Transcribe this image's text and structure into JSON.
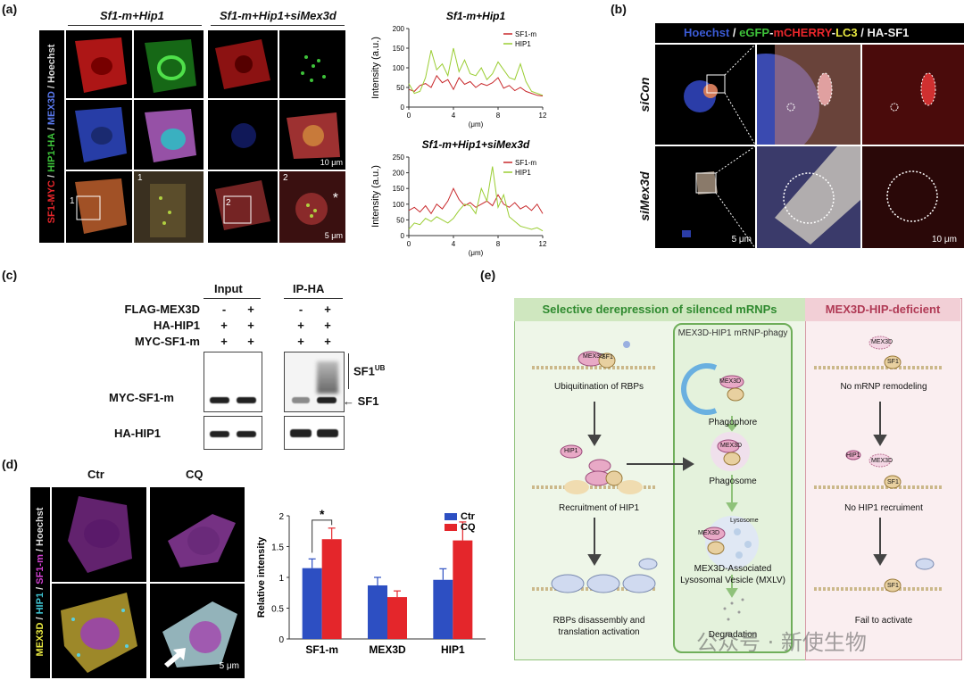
{
  "panel_a": {
    "label": "(a)",
    "cond1": "Sf1-m+Hip1",
    "cond2": "Sf1-m+Hip1+siMex3d",
    "side_label": {
      "sf1": "SF1-MYC",
      "sep1": " / ",
      "hip": "HIP1-HA",
      "sep2": " / ",
      "mex": "MEX3D",
      "sep3": " / ",
      "hoe": "Hoechst"
    },
    "scale1": "10 μm",
    "scale2": "5 μm",
    "inset1": "1",
    "inset2": "2",
    "inset1b": "1",
    "inset2b": "2",
    "star": "*",
    "colors": {
      "sf1": "#e8262b",
      "hip": "#3ec23a",
      "mex": "#3b5bd6",
      "hoe": "#dddddd"
    }
  },
  "chart_data": [
    {
      "type": "line",
      "title": "Sf1-m+Hip1",
      "xlabel": "(μm)",
      "ylabel": "Intensity (a.u.)",
      "xlim": [
        0,
        12
      ],
      "ylim": [
        0,
        200
      ],
      "xticks": [
        0,
        4,
        8,
        12
      ],
      "yticks": [
        0,
        50,
        100,
        150,
        200
      ],
      "series": [
        {
          "name": "SF1-m",
          "color": "#c8282b",
          "x": [
            0,
            0.5,
            1,
            1.5,
            2,
            2.5,
            3,
            3.5,
            4,
            4.5,
            5,
            5.5,
            6,
            6.5,
            7,
            7.5,
            8,
            8.5,
            9,
            9.5,
            10,
            10.5,
            11,
            11.5,
            12
          ],
          "y": [
            45,
            40,
            55,
            60,
            50,
            80,
            62,
            70,
            45,
            75,
            58,
            65,
            50,
            60,
            55,
            62,
            75,
            48,
            55,
            42,
            50,
            40,
            35,
            30,
            28
          ]
        },
        {
          "name": "HIP1",
          "color": "#9acd32",
          "x": [
            0,
            0.5,
            1,
            1.5,
            2,
            2.5,
            3,
            3.5,
            4,
            4.5,
            5,
            5.5,
            6,
            6.5,
            7,
            7.5,
            8,
            8.5,
            9,
            9.5,
            10,
            10.5,
            11,
            11.5,
            12
          ],
          "y": [
            60,
            35,
            40,
            75,
            145,
            95,
            110,
            80,
            150,
            90,
            120,
            85,
            80,
            100,
            70,
            85,
            115,
            95,
            75,
            70,
            110,
            65,
            40,
            35,
            30
          ]
        }
      ]
    },
    {
      "type": "line",
      "title": "Sf1-m+Hip1+siMex3d",
      "xlabel": "(μm)",
      "ylabel": "Intensity (a.u.)",
      "xlim": [
        0,
        12
      ],
      "ylim": [
        0,
        250
      ],
      "xticks": [
        0,
        4,
        8,
        12
      ],
      "yticks": [
        0,
        50,
        100,
        150,
        200,
        250
      ],
      "series": [
        {
          "name": "SF1-m",
          "color": "#c8282b",
          "x": [
            0,
            0.5,
            1,
            1.5,
            2,
            2.5,
            3,
            3.5,
            4,
            4.5,
            5,
            5.5,
            6,
            6.5,
            7,
            7.5,
            8,
            8.5,
            9,
            9.5,
            10,
            10.5,
            11,
            11.5,
            12
          ],
          "y": [
            80,
            90,
            75,
            95,
            70,
            100,
            85,
            110,
            150,
            115,
            95,
            105,
            90,
            100,
            110,
            95,
            130,
            100,
            90,
            105,
            85,
            95,
            80,
            100,
            70
          ]
        },
        {
          "name": "HIP1",
          "color": "#9acd32",
          "x": [
            0,
            0.5,
            1,
            1.5,
            2,
            2.5,
            3,
            3.5,
            4,
            4.5,
            5,
            5.5,
            6,
            6.5,
            7,
            7.5,
            8,
            8.5,
            9,
            9.5,
            10,
            10.5,
            11,
            11.5,
            12
          ],
          "y": [
            20,
            40,
            35,
            55,
            45,
            60,
            50,
            40,
            55,
            80,
            100,
            95,
            70,
            150,
            110,
            220,
            90,
            130,
            60,
            45,
            30,
            25,
            20,
            25,
            15
          ]
        }
      ]
    },
    {
      "type": "bar",
      "categories": [
        "SF1-m",
        "MEX3D",
        "HIP1"
      ],
      "ylabel": "Relative intensity",
      "ylim": [
        0,
        2
      ],
      "yticks": [
        0,
        0.5,
        1,
        1.5,
        2
      ],
      "legend": "top-right",
      "significance": "*",
      "series": [
        {
          "name": "Ctr",
          "color": "#2d4fc2",
          "values": [
            1.15,
            0.87,
            0.96
          ],
          "errors": [
            0.15,
            0.13,
            0.18
          ]
        },
        {
          "name": "CQ",
          "color": "#e4262b",
          "values": [
            1.62,
            0.68,
            1.6
          ],
          "errors": [
            0.18,
            0.1,
            0.3
          ]
        }
      ]
    }
  ],
  "panel_b": {
    "label": "(b)",
    "header": {
      "hoe": "Hoechst",
      "s1": " / ",
      "egfp": "eGFP",
      "dash1": "-",
      "mch": "mCHERRY",
      "dash2": "-",
      "lc3": "LC3",
      "s2": " / ",
      "ha": "HA-SF1"
    },
    "row1": "siCon",
    "row2": "siMex3d",
    "scale1": "5 μm",
    "scale2": "10 μm"
  },
  "panel_c": {
    "label": "(c)",
    "input": "Input",
    "ip": "IP-HA",
    "row_labels": [
      "FLAG-MEX3D",
      "HA-HIP1",
      "MYC-SF1-m"
    ],
    "signs_input": [
      [
        "-",
        "+"
      ],
      [
        "+",
        "+"
      ],
      [
        "+",
        "+"
      ]
    ],
    "signs_ip": [
      [
        "-",
        "+"
      ],
      [
        "+",
        "+"
      ],
      [
        "+",
        "+"
      ]
    ],
    "blot1": "MYC-SF1-m",
    "blot2": "HA-HIP1",
    "sf1ub": "SF1",
    "ub_sup": "UB",
    "sf1": "SF1"
  },
  "panel_d": {
    "label": "(d)",
    "ctr": "Ctr",
    "cq": "CQ",
    "side": {
      "mex": "MEX3D",
      "s1": " / ",
      "hip": "HIP1",
      "s2": " / ",
      "sf1": "SF1-m",
      "s3": " / ",
      "hoe": "Hoechst"
    },
    "scale": "5 μm"
  },
  "panel_e": {
    "label": "(e)",
    "left_title": "Selective derepression of silenced mRNPs",
    "right_title": "MEX3D-HIP-deficient",
    "middle_title": "MEX3D-HIP1 mRNP-phagy",
    "steps_left": [
      "Ubiquitination of RBPs",
      "Recruitment of HIP1",
      "RBPs disassembly and",
      "translation activation"
    ],
    "steps_mid": [
      "Phagophore",
      "Phagosome",
      "Lysosome",
      "MEX3D-Associated",
      "Lysosomal Vesicle (MXLV)",
      "Degradation"
    ],
    "steps_right": [
      "No mRNP remodeling",
      "No HIP1 recruiment",
      "Fail to activate"
    ],
    "molecules": {
      "mex": "MEX3D",
      "sf1": "SF1",
      "hip": "HIP1"
    }
  },
  "watermark": "公众号 · 新使生物"
}
